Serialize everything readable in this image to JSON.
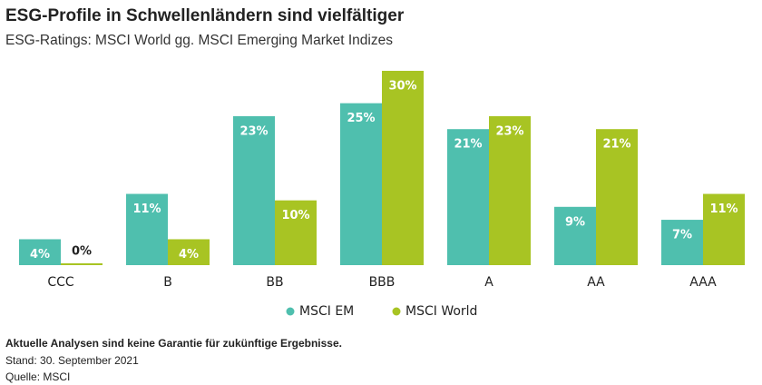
{
  "chart_data": {
    "type": "bar",
    "title": "ESG-Profile in Schwellenländern sind vielfältiger",
    "subtitle": "ESG-Ratings: MSCI World gg. MSCI Emerging Market Indizes",
    "categories": [
      "CCC",
      "B",
      "BB",
      "BBB",
      "A",
      "AA",
      "AAA"
    ],
    "series": [
      {
        "name": "MSCI EM",
        "color": "#4fbfae",
        "values": [
          4,
          11,
          23,
          25,
          21,
          9,
          7
        ],
        "value_labels": [
          "4%",
          "11%",
          "23%",
          "25%",
          "21%",
          "9%",
          "7%"
        ]
      },
      {
        "name": "MSCI World",
        "color": "#a8c423",
        "values": [
          0,
          4,
          10,
          30,
          23,
          21,
          11
        ],
        "value_labels": [
          "0%",
          "4%",
          "10%",
          "30%",
          "23%",
          "21%",
          "11%"
        ]
      }
    ],
    "notes": [
      "Aktuelle Analysen sind keine Garantie für zukünftige Ergebnisse.",
      "Stand: 30. September 2021",
      "Quelle: MSCI"
    ]
  }
}
